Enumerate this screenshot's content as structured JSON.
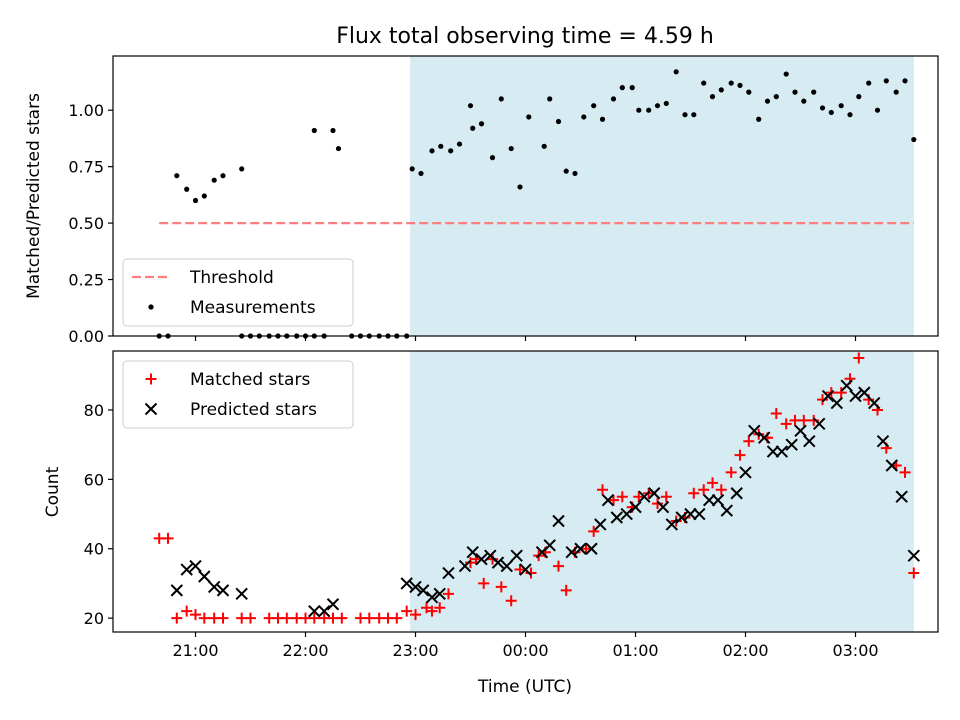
{
  "chart_data": [
    {
      "type": "scatter",
      "title": "Flux total observing time = 4.59 h",
      "xlabel": "",
      "ylabel": "Matched/Predicted stars",
      "x_unit": "UTC time, hours (24+ = next day)",
      "xlim": [
        20.25,
        27.75
      ],
      "ylim": [
        0,
        1.24
      ],
      "yticks": [
        0.0,
        0.25,
        0.5,
        0.75,
        1.0
      ],
      "ytick_labels": [
        "0.00",
        "0.25",
        "0.50",
        "0.75",
        "1.00"
      ],
      "shaded_span": [
        22.95,
        27.53
      ],
      "grid": false,
      "legend_position": "lower-left",
      "series": [
        {
          "name": "Threshold",
          "style": "dashed-line",
          "color": "#ff7f7f",
          "points": [
            [
              20.67,
              0.5
            ],
            [
              27.53,
              0.5
            ]
          ]
        },
        {
          "name": "Measurements",
          "style": "dot",
          "color": "#000000",
          "points": [
            [
              20.67,
              0.0
            ],
            [
              20.75,
              0.0
            ],
            [
              20.83,
              0.71
            ],
            [
              20.92,
              0.65
            ],
            [
              21.0,
              0.6
            ],
            [
              21.08,
              0.62
            ],
            [
              21.17,
              0.69
            ],
            [
              21.25,
              0.71
            ],
            [
              21.42,
              0.0
            ],
            [
              21.42,
              0.74
            ],
            [
              21.5,
              0.0
            ],
            [
              21.58,
              0.0
            ],
            [
              21.67,
              0.0
            ],
            [
              21.75,
              0.0
            ],
            [
              21.83,
              0.0
            ],
            [
              21.92,
              0.0
            ],
            [
              22.0,
              0.0
            ],
            [
              22.08,
              0.0
            ],
            [
              22.17,
              0.0
            ],
            [
              22.08,
              0.91
            ],
            [
              22.25,
              0.91
            ],
            [
              22.3,
              0.83
            ],
            [
              22.42,
              0.0
            ],
            [
              22.5,
              0.0
            ],
            [
              22.58,
              0.0
            ],
            [
              22.67,
              0.0
            ],
            [
              22.75,
              0.0
            ],
            [
              22.83,
              0.0
            ],
            [
              22.92,
              0.0
            ],
            [
              22.97,
              0.74
            ],
            [
              23.05,
              0.72
            ],
            [
              23.15,
              0.82
            ],
            [
              23.23,
              0.84
            ],
            [
              23.32,
              0.82
            ],
            [
              23.4,
              0.85
            ],
            [
              23.5,
              1.02
            ],
            [
              23.52,
              0.92
            ],
            [
              23.6,
              0.94
            ],
            [
              23.7,
              0.79
            ],
            [
              23.78,
              1.05
            ],
            [
              23.87,
              0.83
            ],
            [
              23.95,
              0.66
            ],
            [
              24.03,
              0.97
            ],
            [
              24.17,
              0.84
            ],
            [
              24.22,
              1.05
            ],
            [
              24.3,
              0.95
            ],
            [
              24.37,
              0.73
            ],
            [
              24.45,
              0.72
            ],
            [
              24.53,
              0.97
            ],
            [
              24.62,
              1.02
            ],
            [
              24.7,
              0.96
            ],
            [
              24.8,
              1.05
            ],
            [
              24.88,
              1.1
            ],
            [
              24.97,
              1.1
            ],
            [
              25.03,
              1.0
            ],
            [
              25.12,
              1.0
            ],
            [
              25.2,
              1.02
            ],
            [
              25.28,
              1.03
            ],
            [
              25.37,
              1.17
            ],
            [
              25.45,
              0.98
            ],
            [
              25.53,
              0.98
            ],
            [
              25.62,
              1.12
            ],
            [
              25.7,
              1.06
            ],
            [
              25.78,
              1.09
            ],
            [
              25.87,
              1.12
            ],
            [
              25.95,
              1.11
            ],
            [
              26.03,
              1.08
            ],
            [
              26.12,
              0.96
            ],
            [
              26.2,
              1.04
            ],
            [
              26.28,
              1.06
            ],
            [
              26.37,
              1.16
            ],
            [
              26.45,
              1.08
            ],
            [
              26.53,
              1.04
            ],
            [
              26.62,
              1.08
            ],
            [
              26.7,
              1.01
            ],
            [
              26.78,
              0.99
            ],
            [
              26.87,
              1.02
            ],
            [
              26.95,
              0.98
            ],
            [
              27.03,
              1.06
            ],
            [
              27.12,
              1.12
            ],
            [
              27.2,
              1.0
            ],
            [
              27.28,
              1.13
            ],
            [
              27.37,
              1.08
            ],
            [
              27.45,
              1.13
            ],
            [
              27.53,
              0.87
            ]
          ]
        }
      ]
    },
    {
      "type": "scatter",
      "title": "",
      "xlabel": "Time (UTC)",
      "ylabel": "Count",
      "x_unit": "UTC time, hours (24+ = next day)",
      "xlim": [
        20.25,
        27.75
      ],
      "ylim": [
        16,
        97
      ],
      "yticks": [
        20,
        40,
        60,
        80
      ],
      "ytick_labels": [
        "20",
        "40",
        "60",
        "80"
      ],
      "xticks": [
        21,
        22,
        23,
        24,
        25,
        26,
        27
      ],
      "xtick_labels": [
        "21:00",
        "22:00",
        "23:00",
        "00:00",
        "01:00",
        "02:00",
        "03:00"
      ],
      "shaded_span": [
        22.95,
        27.53
      ],
      "grid": false,
      "legend_position": "upper-left",
      "series": [
        {
          "name": "Matched stars",
          "marker": "plus",
          "color": "#ff0000",
          "points": [
            [
              20.67,
              43
            ],
            [
              20.75,
              43
            ],
            [
              20.83,
              20
            ],
            [
              20.92,
              22
            ],
            [
              21.0,
              21
            ],
            [
              21.08,
              20
            ],
            [
              21.17,
              20
            ],
            [
              21.25,
              20
            ],
            [
              21.42,
              20
            ],
            [
              21.5,
              20
            ],
            [
              21.67,
              20
            ],
            [
              21.75,
              20
            ],
            [
              21.83,
              20
            ],
            [
              21.92,
              20
            ],
            [
              22.0,
              20
            ],
            [
              22.08,
              20
            ],
            [
              22.17,
              20
            ],
            [
              22.25,
              20
            ],
            [
              22.33,
              20
            ],
            [
              22.5,
              20
            ],
            [
              22.58,
              20
            ],
            [
              22.67,
              20
            ],
            [
              22.75,
              20
            ],
            [
              22.83,
              20
            ],
            [
              22.92,
              22
            ],
            [
              23.0,
              21
            ],
            [
              23.1,
              23
            ],
            [
              23.15,
              22
            ],
            [
              23.22,
              23
            ],
            [
              23.3,
              27
            ],
            [
              23.5,
              36
            ],
            [
              23.55,
              37
            ],
            [
              23.62,
              30
            ],
            [
              23.7,
              37
            ],
            [
              23.78,
              29
            ],
            [
              23.87,
              25
            ],
            [
              23.95,
              34
            ],
            [
              24.05,
              33
            ],
            [
              24.12,
              38
            ],
            [
              24.18,
              39
            ],
            [
              24.3,
              35
            ],
            [
              24.37,
              28
            ],
            [
              24.45,
              39
            ],
            [
              24.55,
              40
            ],
            [
              24.62,
              45
            ],
            [
              24.7,
              57
            ],
            [
              24.8,
              54
            ],
            [
              24.88,
              55
            ],
            [
              24.97,
              52
            ],
            [
              25.03,
              55
            ],
            [
              25.12,
              56
            ],
            [
              25.2,
              53
            ],
            [
              25.28,
              55
            ],
            [
              25.37,
              48
            ],
            [
              25.45,
              49
            ],
            [
              25.53,
              56
            ],
            [
              25.62,
              57
            ],
            [
              25.7,
              59
            ],
            [
              25.78,
              57
            ],
            [
              25.87,
              62
            ],
            [
              25.95,
              67
            ],
            [
              26.03,
              71
            ],
            [
              26.12,
              73
            ],
            [
              26.2,
              72
            ],
            [
              26.28,
              79
            ],
            [
              26.37,
              76
            ],
            [
              26.45,
              77
            ],
            [
              26.53,
              77
            ],
            [
              26.62,
              77
            ],
            [
              26.7,
              83
            ],
            [
              26.78,
              85
            ],
            [
              26.87,
              85
            ],
            [
              26.95,
              89
            ],
            [
              27.03,
              95
            ],
            [
              27.12,
              83
            ],
            [
              27.2,
              80
            ],
            [
              27.28,
              69
            ],
            [
              27.37,
              64
            ],
            [
              27.45,
              62
            ],
            [
              27.53,
              33
            ]
          ]
        },
        {
          "name": "Predicted stars",
          "marker": "x",
          "color": "#000000",
          "points": [
            [
              20.83,
              28
            ],
            [
              20.92,
              34
            ],
            [
              21.0,
              35
            ],
            [
              21.08,
              32
            ],
            [
              21.17,
              29
            ],
            [
              21.25,
              28
            ],
            [
              21.42,
              27
            ],
            [
              22.08,
              22
            ],
            [
              22.17,
              22
            ],
            [
              22.25,
              24
            ],
            [
              22.92,
              30
            ],
            [
              23.0,
              29
            ],
            [
              23.07,
              28
            ],
            [
              23.15,
              26
            ],
            [
              23.22,
              27
            ],
            [
              23.3,
              33
            ],
            [
              23.45,
              35
            ],
            [
              23.52,
              39
            ],
            [
              23.6,
              37
            ],
            [
              23.68,
              38
            ],
            [
              23.75,
              36
            ],
            [
              23.83,
              35
            ],
            [
              23.92,
              38
            ],
            [
              24.0,
              34
            ],
            [
              24.15,
              39
            ],
            [
              24.22,
              41
            ],
            [
              24.3,
              48
            ],
            [
              24.42,
              39
            ],
            [
              24.5,
              40
            ],
            [
              24.6,
              40
            ],
            [
              24.68,
              47
            ],
            [
              24.75,
              54
            ],
            [
              24.83,
              49
            ],
            [
              24.92,
              50
            ],
            [
              25.0,
              52
            ],
            [
              25.08,
              55
            ],
            [
              25.17,
              56
            ],
            [
              25.25,
              52
            ],
            [
              25.33,
              47
            ],
            [
              25.42,
              49
            ],
            [
              25.5,
              50
            ],
            [
              25.58,
              50
            ],
            [
              25.67,
              54
            ],
            [
              25.75,
              54
            ],
            [
              25.83,
              51
            ],
            [
              25.92,
              56
            ],
            [
              26.0,
              62
            ],
            [
              26.08,
              74
            ],
            [
              26.17,
              72
            ],
            [
              26.25,
              68
            ],
            [
              26.33,
              68
            ],
            [
              26.42,
              70
            ],
            [
              26.5,
              74
            ],
            [
              26.58,
              71
            ],
            [
              26.67,
              76
            ],
            [
              26.75,
              84
            ],
            [
              26.83,
              82
            ],
            [
              26.92,
              87
            ],
            [
              27.0,
              84
            ],
            [
              27.08,
              85
            ],
            [
              27.17,
              82
            ],
            [
              27.25,
              71
            ],
            [
              27.33,
              64
            ],
            [
              27.42,
              55
            ],
            [
              27.53,
              38
            ]
          ]
        }
      ]
    }
  ],
  "colors": {
    "shade": "#add8e6",
    "threshold": "#ff7f7f",
    "matched": "#ff0000",
    "predicted": "#000000"
  }
}
